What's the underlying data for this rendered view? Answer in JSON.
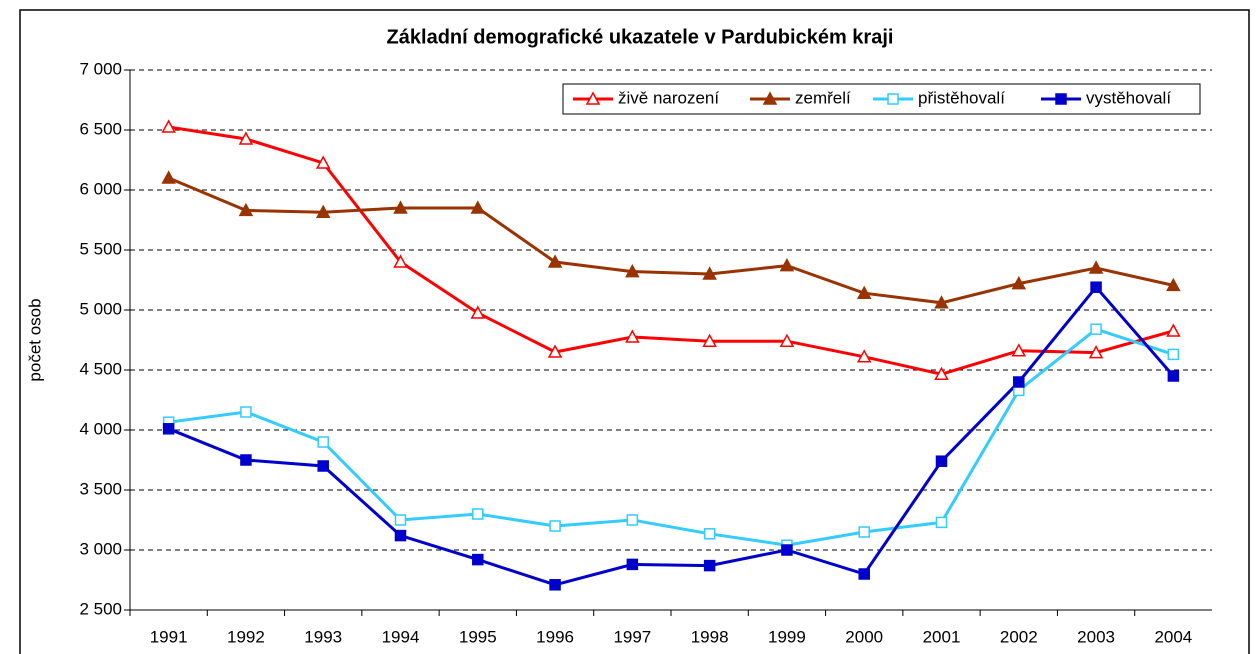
{
  "chart_data": {
    "type": "line",
    "title": "Základní demografické ukazatele v Pardubickém kraji",
    "y_label": "počet osob",
    "categories": [
      "1991",
      "1992",
      "1993",
      "1994",
      "1995",
      "1996",
      "1997",
      "1998",
      "1999",
      "2000",
      "2001",
      "2002",
      "2003",
      "2004"
    ],
    "series": [
      {
        "name": "živě narození",
        "color": "#ff0000",
        "marker": "triangle",
        "filled": false,
        "values": [
          6525,
          6425,
          6225,
          5400,
          4975,
          4650,
          4775,
          4740,
          4740,
          4610,
          4465,
          4660,
          4645,
          4825
        ]
      },
      {
        "name": "zemřelí",
        "color": "#993300",
        "marker": "triangle",
        "filled": true,
        "values": [
          6100,
          5830,
          5815,
          5850,
          5850,
          5400,
          5320,
          5300,
          5370,
          5140,
          5060,
          5220,
          5350,
          5205
        ]
      },
      {
        "name": "přistěhovalí",
        "color": "#33ccff",
        "marker": "square",
        "filled": false,
        "values": [
          4065,
          4150,
          3900,
          3250,
          3300,
          3200,
          3250,
          3135,
          3040,
          3150,
          3230,
          4330,
          4840,
          4630
        ]
      },
      {
        "name": "vystěhovalí",
        "color": "#0000cc",
        "marker": "square",
        "filled": true,
        "values": [
          4010,
          3750,
          3700,
          3120,
          2920,
          2710,
          2880,
          2870,
          3000,
          2800,
          3740,
          4400,
          5190,
          4450
        ]
      }
    ],
    "ylim": [
      2500,
      7000
    ],
    "yticks": [
      {
        "value": 2500,
        "label": "2 500"
      },
      {
        "value": 3000,
        "label": "3 000"
      },
      {
        "value": 3500,
        "label": "3 500"
      },
      {
        "value": 4000,
        "label": "4 000"
      },
      {
        "value": 4500,
        "label": "4 500"
      },
      {
        "value": 5000,
        "label": "5 000"
      },
      {
        "value": 5500,
        "label": "5 500"
      },
      {
        "value": 6000,
        "label": "6 000"
      },
      {
        "value": 6500,
        "label": "6 500"
      },
      {
        "value": 7000,
        "label": "7 000"
      }
    ],
    "grid": true,
    "legend": "top-right"
  }
}
